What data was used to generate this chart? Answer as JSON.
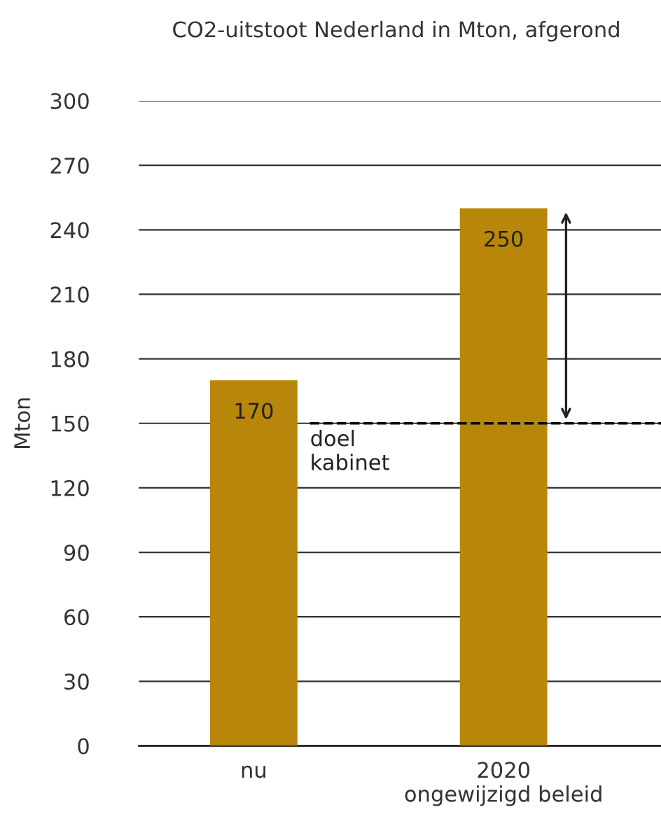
{
  "chart_data": {
    "type": "bar",
    "title": "CO2-uitstoot Nederland in Mton, afgerond",
    "ylabel": "Mton",
    "categories": [
      "nu",
      "2020\nongewijzigd beleid"
    ],
    "values": [
      170,
      250
    ],
    "color": "#b8860b",
    "data_labels": true,
    "ylim": [
      0,
      300
    ],
    "yticks": [
      0,
      30,
      60,
      90,
      120,
      150,
      180,
      210,
      240,
      270,
      300
    ],
    "grid": "y",
    "ref_lines": [
      {
        "axis": "y",
        "value": 150,
        "label": "doel\nkabinet",
        "line_style": "dashed",
        "color": "#000000"
      }
    ]
  }
}
